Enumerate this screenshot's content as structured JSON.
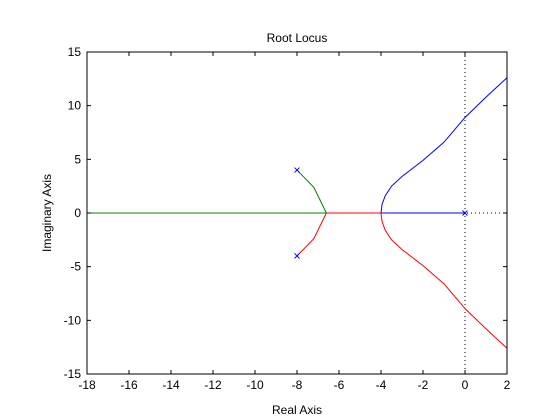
{
  "chart_data": {
    "type": "line",
    "title": "Root Locus",
    "xlabel": "Real Axis",
    "ylabel": "Imaginary Axis",
    "xlim": [
      -18,
      2
    ],
    "ylim": [
      -15,
      15
    ],
    "xticks": [
      -18,
      -16,
      -14,
      -12,
      -10,
      -8,
      -6,
      -4,
      -2,
      0,
      2
    ],
    "yticks": [
      -15,
      -10,
      -5,
      0,
      5,
      10,
      15
    ],
    "grid": false,
    "legend": "none",
    "branches": [
      {
        "color": "#0000ff",
        "points": [
          [
            0,
            0
          ],
          [
            -4,
            0
          ]
        ]
      },
      {
        "color": "#0000ff",
        "points": [
          [
            -4,
            0
          ],
          [
            -3.95,
            0.8
          ],
          [
            -3.8,
            1.6
          ],
          [
            -3.5,
            2.5
          ],
          [
            -3,
            3.4
          ],
          [
            -2,
            4.9
          ],
          [
            -1,
            6.6
          ],
          [
            0,
            8.9
          ],
          [
            1,
            10.8
          ],
          [
            2,
            12.6
          ]
        ]
      },
      {
        "color": "#ff0000",
        "points": [
          [
            -4,
            0
          ],
          [
            -3.95,
            -0.8
          ],
          [
            -3.8,
            -1.6
          ],
          [
            -3.5,
            -2.5
          ],
          [
            -3,
            -3.4
          ],
          [
            -2,
            -4.9
          ],
          [
            -1,
            -6.6
          ],
          [
            0,
            -8.9
          ],
          [
            1,
            -10.8
          ],
          [
            2,
            -12.6
          ]
        ]
      },
      {
        "color": "#ff0000",
        "points": [
          [
            -4,
            0
          ],
          [
            -6.6,
            0
          ]
        ]
      },
      {
        "color": "#ff0000",
        "points": [
          [
            -8,
            -4
          ],
          [
            -7.2,
            -2.4
          ],
          [
            -6.6,
            0
          ]
        ]
      },
      {
        "color": "#008000",
        "points": [
          [
            -8,
            4
          ],
          [
            -7.2,
            2.4
          ],
          [
            -6.6,
            0
          ]
        ]
      },
      {
        "color": "#008000",
        "points": [
          [
            -6.6,
            0
          ],
          [
            -18,
            0
          ]
        ]
      }
    ],
    "poles": [
      [
        0,
        0
      ],
      [
        -8,
        4
      ],
      [
        -8,
        -4
      ]
    ],
    "pole_color": "#0000ff",
    "reference_lines": {
      "x": 0,
      "y": 0,
      "style": "dotted",
      "color": "#000000"
    }
  }
}
